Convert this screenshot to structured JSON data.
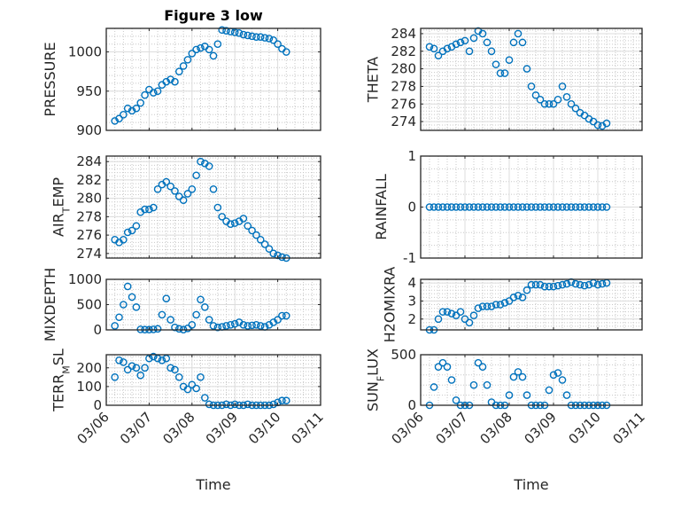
{
  "chart_data": [
    {
      "type": "scatter",
      "title": "Figure 3 low",
      "ylabel": "PRESSURE",
      "xlabel": "",
      "ylim": [
        900,
        1030
      ],
      "yticks": [
        900,
        950,
        1000
      ],
      "values": [
        912,
        915,
        920,
        928,
        925,
        928,
        935,
        945,
        952,
        948,
        950,
        958,
        962,
        965,
        962,
        975,
        982,
        990,
        998,
        1003,
        1005,
        1007,
        1003,
        995,
        1010,
        1028,
        1027,
        1026,
        1025,
        1024,
        1022,
        1021,
        1020,
        1019,
        1019,
        1018,
        1017,
        1015,
        1010,
        1004,
        1000
      ]
    },
    {
      "type": "scatter",
      "title": "",
      "ylabel": "THETA",
      "xlabel": "",
      "ylim": [
        273,
        284.6
      ],
      "yticks": [
        274,
        276,
        278,
        280,
        282,
        284
      ],
      "values": [
        282.5,
        282.3,
        281.5,
        282,
        282.3,
        282.5,
        282.8,
        283,
        283.2,
        282,
        283.5,
        284.3,
        284,
        283,
        282,
        280.5,
        279.5,
        279.5,
        281,
        283,
        284,
        283,
        280,
        278,
        277,
        276.5,
        276,
        276,
        276,
        276.5,
        278,
        276.8,
        276,
        275.5,
        275,
        274.7,
        274.3,
        274,
        273.6,
        273.5,
        273.8
      ]
    },
    {
      "type": "scatter",
      "title": "",
      "ylabel": "AIR_TEMP",
      "xlabel": "",
      "ylim": [
        273.5,
        284.6
      ],
      "yticks": [
        274,
        276,
        278,
        280,
        282,
        284
      ],
      "values": [
        275.5,
        275.2,
        275.5,
        276.3,
        276.5,
        277,
        278.5,
        278.8,
        278.8,
        279,
        281,
        281.5,
        281.8,
        281.3,
        280.8,
        280.2,
        279.8,
        280.5,
        281,
        282.5,
        284,
        283.8,
        283.5,
        281,
        279,
        278,
        277.5,
        277.2,
        277.3,
        277.5,
        277.8,
        277,
        276.5,
        276,
        275.5,
        275,
        274.5,
        274,
        273.8,
        273.6,
        273.5
      ]
    },
    {
      "type": "scatter",
      "title": "",
      "ylabel": "RAINFALL",
      "xlabel": "",
      "ylim": [
        -1,
        1
      ],
      "yticks": [
        -1,
        0,
        1
      ],
      "values": [
        0,
        0,
        0,
        0,
        0,
        0,
        0,
        0,
        0,
        0,
        0,
        0,
        0,
        0,
        0,
        0,
        0,
        0,
        0,
        0,
        0,
        0,
        0,
        0,
        0,
        0,
        0,
        0,
        0,
        0,
        0,
        0,
        0,
        0,
        0,
        0,
        0,
        0,
        0,
        0,
        0
      ]
    },
    {
      "type": "scatter",
      "title": "",
      "ylabel": "MIXDEPTH",
      "xlabel": "",
      "ylim": [
        0,
        1000
      ],
      "yticks": [
        0,
        500,
        1000
      ],
      "values": [
        80,
        250,
        500,
        860,
        650,
        450,
        10,
        5,
        5,
        10,
        20,
        300,
        620,
        200,
        50,
        20,
        5,
        30,
        100,
        300,
        600,
        450,
        200,
        80,
        50,
        60,
        80,
        100,
        120,
        150,
        100,
        80,
        90,
        100,
        80,
        60,
        100,
        150,
        200,
        280,
        280
      ]
    },
    {
      "type": "scatter",
      "title": "",
      "ylabel": "H2OMIXRA",
      "xlabel": "",
      "ylim": [
        1.4,
        4.2
      ],
      "yticks": [
        2,
        3,
        4
      ],
      "values": [
        1.4,
        1.4,
        2.0,
        2.4,
        2.4,
        2.3,
        2.2,
        2.4,
        2.0,
        1.8,
        2.2,
        2.6,
        2.7,
        2.7,
        2.7,
        2.8,
        2.8,
        2.9,
        3.0,
        3.2,
        3.3,
        3.2,
        3.6,
        3.9,
        3.9,
        3.9,
        3.8,
        3.8,
        3.8,
        3.85,
        3.9,
        3.95,
        4.05,
        3.95,
        3.9,
        3.85,
        3.9,
        4.0,
        3.9,
        3.95,
        4.0
      ]
    },
    {
      "type": "scatter",
      "title": "",
      "ylabel": "TERR_MSL",
      "xlabel": "Time",
      "ylim": [
        0,
        270
      ],
      "yticks": [
        0,
        100,
        200
      ],
      "values": [
        150,
        240,
        230,
        190,
        210,
        200,
        160,
        200,
        250,
        260,
        250,
        240,
        250,
        200,
        190,
        150,
        100,
        85,
        110,
        90,
        150,
        40,
        5,
        0,
        0,
        0,
        5,
        0,
        5,
        0,
        0,
        5,
        0,
        0,
        0,
        0,
        0,
        5,
        15,
        25,
        25
      ]
    },
    {
      "type": "scatter",
      "title": "",
      "ylabel": "SUN_FLUX",
      "xlabel": "Time",
      "ylim": [
        0,
        500
      ],
      "yticks": [
        0,
        500
      ],
      "values": [
        0,
        180,
        380,
        420,
        380,
        250,
        50,
        0,
        0,
        0,
        200,
        420,
        380,
        200,
        30,
        0,
        0,
        0,
        100,
        280,
        330,
        280,
        100,
        0,
        0,
        0,
        0,
        150,
        300,
        320,
        250,
        100,
        0,
        0,
        0,
        0,
        0,
        0,
        0,
        0,
        0
      ]
    }
  ],
  "time_days_since_0306": [
    0.2,
    0.3,
    0.4,
    0.5,
    0.6,
    0.7,
    0.8,
    0.9,
    1.0,
    1.1,
    1.2,
    1.3,
    1.4,
    1.5,
    1.6,
    1.7,
    1.8,
    1.9,
    2.0,
    2.1,
    2.2,
    2.3,
    2.4,
    2.5,
    2.6,
    2.7,
    2.8,
    2.9,
    3.0,
    3.1,
    3.2,
    3.3,
    3.4,
    3.5,
    3.6,
    3.7,
    3.8,
    3.9,
    4.0,
    4.1,
    4.2
  ],
  "xlim_days": [
    0,
    5
  ],
  "xtick_labels": [
    "03/06",
    "03/07",
    "03/08",
    "03/09",
    "03/10",
    "03/11"
  ],
  "marker_color": "#0072BD",
  "grid": true
}
